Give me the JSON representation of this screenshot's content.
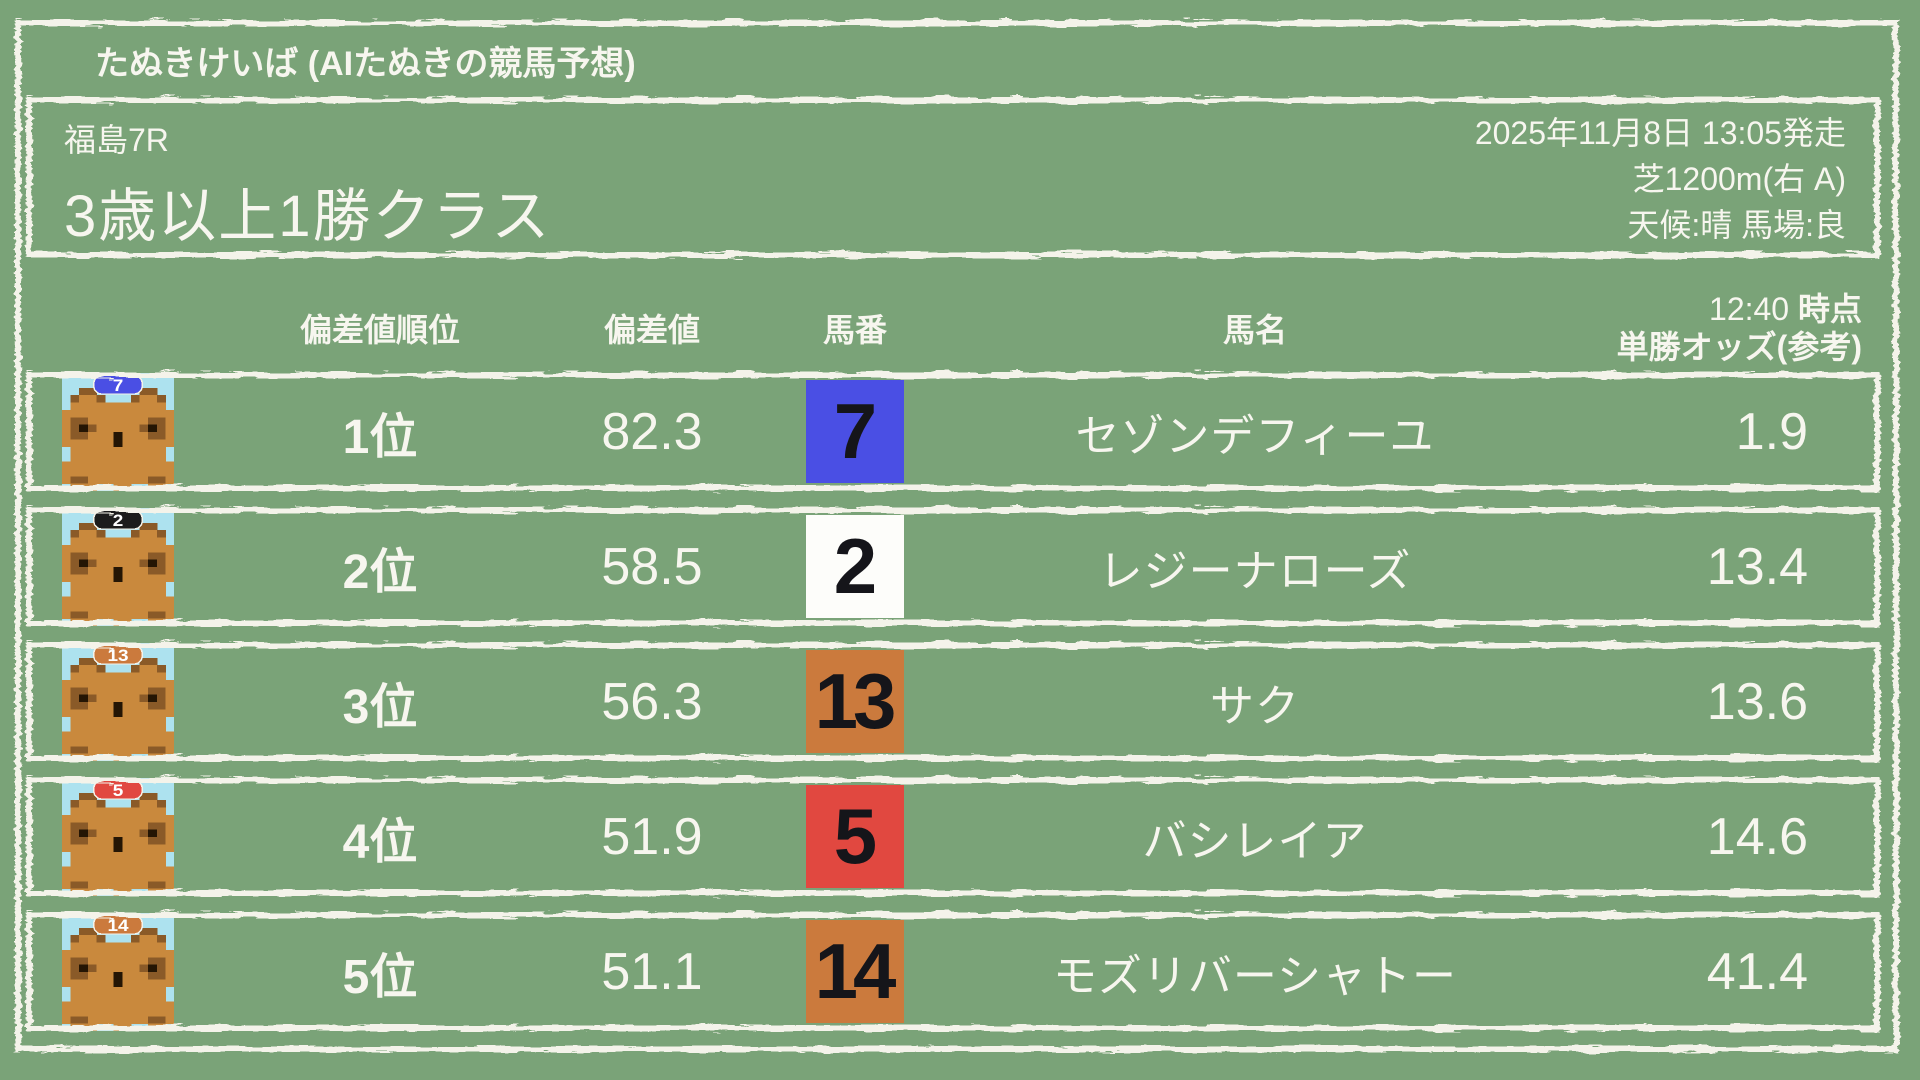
{
  "app": {
    "title": "たぬきけいば (AIたぬきの競馬予想)"
  },
  "race": {
    "course_race": "福島7R",
    "class_name": "3歳以上1勝クラス",
    "start_datetime": "2025年11月8日 13:05発走",
    "track": "芝1200m(右 A)",
    "conditions": "天候:晴 馬場:良"
  },
  "table": {
    "headers": {
      "rank": "偏差値順位",
      "deviation": "偏差値",
      "number": "馬番",
      "name": "馬名",
      "odds_time": "12:40",
      "odds_time_suffix": " 時点",
      "odds_label": "単勝オッズ(参考)"
    },
    "rows": [
      {
        "rank": "1位",
        "deviation": "82.3",
        "number": "7",
        "number_bg": "#4a4fe4",
        "number_color": "#15151a",
        "name": "セゾンデフィーユ",
        "odds": "1.9",
        "cap_color": "#4a4fe4",
        "cap_text_color": "#ffffff"
      },
      {
        "rank": "2位",
        "deviation": "58.5",
        "number": "2",
        "number_bg": "#fdfdfa",
        "number_color": "#15151a",
        "name": "レジーナローズ",
        "odds": "13.4",
        "cap_color": "#1c1c1c",
        "cap_text_color": "#ffffff"
      },
      {
        "rank": "3位",
        "deviation": "56.3",
        "number": "13",
        "number_bg": "#cb7a3d",
        "number_color": "#15151a",
        "name": "サク",
        "odds": "13.6",
        "cap_color": "#cb7a3d",
        "cap_text_color": "#ffffff"
      },
      {
        "rank": "4位",
        "deviation": "51.9",
        "number": "5",
        "number_bg": "#e14840",
        "number_color": "#15151a",
        "name": "バシレイア",
        "odds": "14.6",
        "cap_color": "#e14840",
        "cap_text_color": "#ffffff"
      },
      {
        "rank": "5位",
        "deviation": "51.1",
        "number": "14",
        "number_bg": "#cb7a3d",
        "number_color": "#15151a",
        "name": "モズリバーシャトー",
        "odds": "41.4",
        "cap_color": "#cb7a3d",
        "cap_text_color": "#ffffff"
      }
    ]
  },
  "icons": {
    "avatar": "tanuki-avatar-icon"
  },
  "colors": {
    "background": "#7aa378",
    "line": "#f4f3ea",
    "text": "#f7f6ef",
    "avatar_background": "#ade2ef",
    "tanuki_fur": "#c9893d",
    "tanuki_dark": "#8a5a28",
    "tanuki_black": "#241504"
  }
}
